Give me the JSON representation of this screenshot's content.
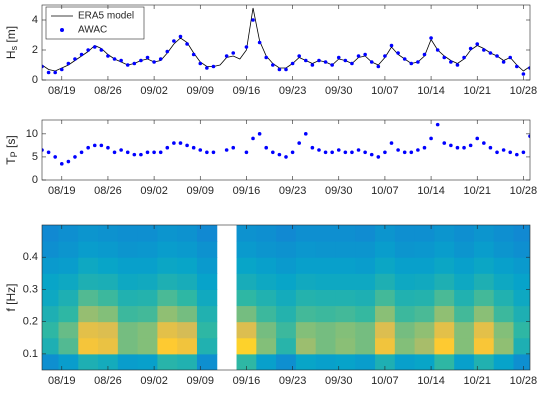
{
  "chart_data": [
    {
      "type": "line",
      "ylabel": {
        "main": "H",
        "sub": "s",
        "unit": " [m]"
      },
      "x": [
        "08/16",
        "08/17",
        "08/18",
        "08/19",
        "08/20",
        "08/21",
        "08/22",
        "08/23",
        "08/24",
        "08/25",
        "08/26",
        "08/27",
        "08/28",
        "08/29",
        "08/30",
        "08/31",
        "09/01",
        "09/02",
        "09/03",
        "09/04",
        "09/05",
        "09/06",
        "09/07",
        "09/08",
        "09/09",
        "09/10",
        "09/11",
        "09/12",
        "09/13",
        "09/14",
        "09/15",
        "09/16",
        "09/17",
        "09/18",
        "09/19",
        "09/20",
        "09/21",
        "09/22",
        "09/23",
        "09/24",
        "09/25",
        "09/26",
        "09/27",
        "09/28",
        "09/29",
        "09/30",
        "10/01",
        "10/02",
        "10/03",
        "10/04",
        "10/05",
        "10/06",
        "10/07",
        "10/08",
        "10/09",
        "10/10",
        "10/11",
        "10/12",
        "10/13",
        "10/14",
        "10/15",
        "10/16",
        "10/17",
        "10/18",
        "10/19",
        "10/20",
        "10/21",
        "10/22",
        "10/23",
        "10/24",
        "10/25",
        "10/26",
        "10/27",
        "10/28",
        "10/29"
      ],
      "series": [
        {
          "name": "ERA5 model",
          "style": "line",
          "color": "#000000",
          "values": [
            1.0,
            0.7,
            0.6,
            0.8,
            1.0,
            1.3,
            1.6,
            1.9,
            2.3,
            2.1,
            1.7,
            1.4,
            1.2,
            1.0,
            1.1,
            1.3,
            1.4,
            1.2,
            1.3,
            1.8,
            2.4,
            2.8,
            2.5,
            1.8,
            1.2,
            0.9,
            0.9,
            1.0,
            1.5,
            1.6,
            1.4,
            2.0,
            4.8,
            2.6,
            1.6,
            1.1,
            0.8,
            0.8,
            1.1,
            1.5,
            1.3,
            1.1,
            1.3,
            1.2,
            1.0,
            1.4,
            1.3,
            1.1,
            1.5,
            1.6,
            1.2,
            1.0,
            1.5,
            2.2,
            1.7,
            1.4,
            1.1,
            1.2,
            1.6,
            2.7,
            2.0,
            1.6,
            1.3,
            1.1,
            1.4,
            2.0,
            2.3,
            2.1,
            1.8,
            1.6,
            1.3,
            1.5,
            1.0,
            0.6,
            0.9
          ]
        },
        {
          "name": "AWAC",
          "style": "dots",
          "color": "#0000ff",
          "values": [
            0.9,
            0.5,
            0.5,
            0.7,
            1.1,
            1.4,
            1.7,
            2.0,
            2.2,
            2.0,
            1.6,
            1.4,
            1.3,
            1.0,
            1.1,
            1.3,
            1.5,
            1.2,
            1.4,
            1.9,
            2.6,
            2.9,
            2.4,
            1.7,
            1.1,
            0.8,
            0.9,
            null,
            1.6,
            1.8,
            null,
            2.2,
            4.0,
            2.5,
            1.5,
            1.0,
            0.7,
            0.7,
            1.1,
            1.6,
            1.3,
            1.0,
            1.3,
            1.2,
            1.0,
            1.5,
            1.3,
            1.1,
            1.6,
            1.7,
            1.2,
            0.9,
            1.6,
            2.3,
            1.8,
            1.4,
            1.1,
            1.2,
            1.7,
            2.8,
            2.0,
            1.5,
            1.2,
            1.0,
            1.5,
            2.1,
            2.4,
            2.0,
            1.8,
            1.6,
            1.2,
            1.5,
            0.9,
            0.4,
            0.8
          ]
        }
      ],
      "legend": "upper left",
      "xlim": [
        "08/16",
        "10/29"
      ],
      "xticks": [
        "08/19",
        "08/26",
        "09/02",
        "09/09",
        "09/16",
        "09/23",
        "09/30",
        "10/07",
        "10/14",
        "10/21",
        "10/28"
      ],
      "ylim": [
        0,
        5
      ],
      "yticks": [
        0,
        2,
        4
      ]
    },
    {
      "type": "scatter",
      "ylabel": {
        "main": "T",
        "sub": "P",
        "unit": " [s]"
      },
      "x": [
        "08/16",
        "08/17",
        "08/18",
        "08/19",
        "08/20",
        "08/21",
        "08/22",
        "08/23",
        "08/24",
        "08/25",
        "08/26",
        "08/27",
        "08/28",
        "08/29",
        "08/30",
        "08/31",
        "09/01",
        "09/02",
        "09/03",
        "09/04",
        "09/05",
        "09/06",
        "09/07",
        "09/08",
        "09/09",
        "09/10",
        "09/11",
        "09/12",
        "09/13",
        "09/14",
        "09/15",
        "09/16",
        "09/17",
        "09/18",
        "09/19",
        "09/20",
        "09/21",
        "09/22",
        "09/23",
        "09/24",
        "09/25",
        "09/26",
        "09/27",
        "09/28",
        "09/29",
        "09/30",
        "10/01",
        "10/02",
        "10/03",
        "10/04",
        "10/05",
        "10/06",
        "10/07",
        "10/08",
        "10/09",
        "10/10",
        "10/11",
        "10/12",
        "10/13",
        "10/14",
        "10/15",
        "10/16",
        "10/17",
        "10/18",
        "10/19",
        "10/20",
        "10/21",
        "10/22",
        "10/23",
        "10/24",
        "10/25",
        "10/26",
        "10/27",
        "10/28",
        "10/29"
      ],
      "color": "#0000ff",
      "values": [
        6.5,
        6,
        5,
        3.5,
        4,
        5,
        6,
        7,
        7.5,
        7.5,
        7,
        6,
        6.5,
        6,
        5.5,
        5.5,
        6,
        6,
        6,
        7,
        8,
        8,
        7.5,
        7,
        6.5,
        6,
        6,
        null,
        6.5,
        7,
        null,
        6,
        9,
        10,
        7,
        6,
        5.5,
        5,
        6,
        8,
        10,
        7,
        6.5,
        6,
        6,
        6.5,
        6,
        6,
        6.5,
        6,
        5.5,
        5,
        6,
        8,
        6.5,
        6,
        6,
        6.5,
        7,
        9,
        12,
        8,
        7.5,
        7,
        7,
        7.5,
        9,
        8,
        7,
        6,
        6.5,
        6,
        5.5,
        6,
        9.5
      ],
      "xlim": [
        "08/16",
        "10/29"
      ],
      "xticks": [
        "08/19",
        "08/26",
        "09/02",
        "09/09",
        "09/16",
        "09/23",
        "09/30",
        "10/07",
        "10/14",
        "10/21",
        "10/28"
      ],
      "ylim": [
        0,
        13
      ],
      "yticks": [
        0,
        5,
        10
      ]
    },
    {
      "type": "heatmap",
      "ylabel": "f [Hz]",
      "x": [
        "08/17",
        "08/20",
        "08/23",
        "08/26",
        "08/29",
        "09/01",
        "09/04",
        "09/07",
        "09/10",
        "09/13",
        "09/16",
        "09/19",
        "09/22",
        "09/25",
        "09/28",
        "10/01",
        "10/04",
        "10/07",
        "10/10",
        "10/13",
        "10/16",
        "10/19",
        "10/22",
        "10/25",
        "10/28"
      ],
      "f": [
        0.05,
        0.1,
        0.15,
        0.2,
        0.25,
        0.3,
        0.35,
        0.4,
        0.45,
        0.5
      ],
      "z": [
        [
          0.3,
          0.45,
          0.5,
          0.45,
          0.4,
          0.38,
          0.34,
          0.3,
          0.28
        ],
        [
          0.35,
          0.55,
          0.58,
          0.5,
          0.45,
          0.4,
          0.35,
          0.32,
          0.3
        ],
        [
          0.45,
          0.85,
          0.8,
          0.65,
          0.55,
          0.45,
          0.4,
          0.35,
          0.32
        ],
        [
          0.42,
          0.82,
          0.78,
          0.62,
          0.52,
          0.44,
          0.38,
          0.34,
          0.31
        ],
        [
          0.35,
          0.6,
          0.6,
          0.52,
          0.46,
          0.4,
          0.36,
          0.32,
          0.3
        ],
        [
          0.36,
          0.62,
          0.62,
          0.53,
          0.47,
          0.41,
          0.36,
          0.33,
          0.3
        ],
        [
          0.48,
          0.88,
          0.8,
          0.64,
          0.54,
          0.45,
          0.39,
          0.35,
          0.32
        ],
        [
          0.46,
          0.84,
          0.76,
          0.6,
          0.5,
          0.43,
          0.38,
          0.34,
          0.31
        ],
        [
          0.3,
          0.46,
          0.5,
          0.46,
          0.41,
          0.37,
          0.34,
          0.31,
          0.28
        ],
        null,
        [
          0.5,
          0.9,
          0.78,
          0.6,
          0.5,
          0.43,
          0.38,
          0.34,
          0.31
        ],
        [
          0.36,
          0.62,
          0.6,
          0.52,
          0.46,
          0.4,
          0.36,
          0.32,
          0.3
        ],
        [
          0.3,
          0.48,
          0.52,
          0.47,
          0.42,
          0.38,
          0.34,
          0.31,
          0.28
        ],
        [
          0.38,
          0.66,
          0.62,
          0.53,
          0.47,
          0.41,
          0.36,
          0.33,
          0.3
        ],
        [
          0.36,
          0.6,
          0.6,
          0.52,
          0.46,
          0.4,
          0.36,
          0.32,
          0.3
        ],
        [
          0.37,
          0.63,
          0.62,
          0.53,
          0.46,
          0.4,
          0.36,
          0.32,
          0.3
        ],
        [
          0.35,
          0.6,
          0.6,
          0.51,
          0.45,
          0.4,
          0.35,
          0.32,
          0.29
        ],
        [
          0.45,
          0.84,
          0.78,
          0.63,
          0.53,
          0.45,
          0.39,
          0.35,
          0.32
        ],
        [
          0.36,
          0.62,
          0.6,
          0.52,
          0.46,
          0.4,
          0.36,
          0.32,
          0.3
        ],
        [
          0.38,
          0.68,
          0.64,
          0.54,
          0.47,
          0.41,
          0.36,
          0.33,
          0.3
        ],
        [
          0.5,
          0.88,
          0.8,
          0.64,
          0.54,
          0.45,
          0.39,
          0.35,
          0.32
        ],
        [
          0.36,
          0.62,
          0.62,
          0.53,
          0.46,
          0.4,
          0.36,
          0.32,
          0.3
        ],
        [
          0.46,
          0.86,
          0.8,
          0.63,
          0.53,
          0.45,
          0.39,
          0.35,
          0.32
        ],
        [
          0.37,
          0.64,
          0.62,
          0.52,
          0.46,
          0.4,
          0.36,
          0.32,
          0.3
        ],
        [
          0.3,
          0.45,
          0.5,
          0.45,
          0.4,
          0.37,
          0.34,
          0.3,
          0.28
        ]
      ],
      "xlim": [
        "08/16",
        "10/29"
      ],
      "xticks": [
        "08/19",
        "08/26",
        "09/02",
        "09/09",
        "09/16",
        "09/23",
        "09/30",
        "10/07",
        "10/14",
        "10/21",
        "10/28"
      ],
      "ylim": [
        0.05,
        0.5
      ],
      "yticks": [
        0.1,
        0.2,
        0.3,
        0.4
      ]
    }
  ]
}
